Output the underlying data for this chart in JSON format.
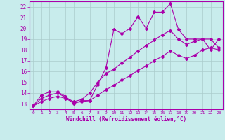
{
  "title": "",
  "xlabel": "Windchill (Refroidissement éolien,°C)",
  "ylabel": "",
  "bg_color": "#c8ecec",
  "line_color": "#aa00aa",
  "grid_color": "#aacccc",
  "xlim": [
    -0.5,
    23.5
  ],
  "ylim": [
    12.5,
    22.5
  ],
  "xticks": [
    0,
    1,
    2,
    3,
    4,
    5,
    6,
    7,
    8,
    9,
    10,
    11,
    12,
    13,
    14,
    15,
    16,
    17,
    18,
    19,
    20,
    21,
    22,
    23
  ],
  "yticks": [
    13,
    14,
    15,
    16,
    17,
    18,
    19,
    20,
    21,
    22
  ],
  "series1_x": [
    0,
    1,
    2,
    3,
    4,
    5,
    6,
    7,
    8,
    9,
    10,
    11,
    12,
    13,
    14,
    15,
    16,
    17,
    18,
    19,
    20,
    21,
    22,
    23
  ],
  "series1_y": [
    12.8,
    13.8,
    14.1,
    14.1,
    13.7,
    13.0,
    13.3,
    13.3,
    14.8,
    16.3,
    19.9,
    19.5,
    20.0,
    21.1,
    20.0,
    21.5,
    21.5,
    22.3,
    19.9,
    19.0,
    19.0,
    19.0,
    18.0,
    19.0
  ],
  "series2_x": [
    0,
    1,
    2,
    3,
    4,
    5,
    6,
    7,
    8,
    9,
    10,
    11,
    12,
    13,
    14,
    15,
    16,
    17,
    18,
    19,
    20,
    21,
    22,
    23
  ],
  "series2_y": [
    12.8,
    13.5,
    13.8,
    14.0,
    13.6,
    13.2,
    13.4,
    14.0,
    15.0,
    15.8,
    16.2,
    16.8,
    17.3,
    17.9,
    18.4,
    18.9,
    19.4,
    19.8,
    19.0,
    18.5,
    18.8,
    19.0,
    19.0,
    18.2
  ],
  "series3_x": [
    0,
    1,
    2,
    3,
    4,
    5,
    6,
    7,
    8,
    9,
    10,
    11,
    12,
    13,
    14,
    15,
    16,
    17,
    18,
    19,
    20,
    21,
    22,
    23
  ],
  "series3_y": [
    12.8,
    13.2,
    13.5,
    13.7,
    13.5,
    13.1,
    13.2,
    13.3,
    13.8,
    14.3,
    14.7,
    15.2,
    15.6,
    16.1,
    16.5,
    17.0,
    17.4,
    17.9,
    17.5,
    17.2,
    17.5,
    18.0,
    18.2,
    18.0
  ]
}
